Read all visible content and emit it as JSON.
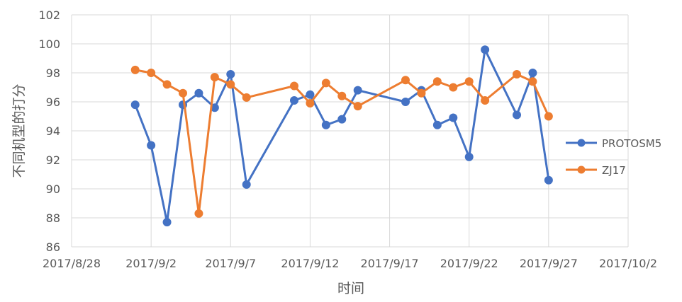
{
  "chart_data": {
    "type": "line",
    "title": "",
    "xlabel": "时间",
    "ylabel": "不同机型的打分",
    "ylim": [
      86,
      102
    ],
    "yticks": [
      86,
      88,
      90,
      92,
      94,
      96,
      98,
      100,
      102
    ],
    "xlim": [
      "2017/8/28",
      "2017/10/2"
    ],
    "xticks": [
      "2017/8/28",
      "2017/9/2",
      "2017/9/7",
      "2017/9/12",
      "2017/9/17",
      "2017/9/22",
      "2017/9/27",
      "2017/10/2"
    ],
    "grid": "vertical and horizontal",
    "legend_position": "right",
    "series": [
      {
        "name": "PROTOSM5",
        "color": "#4472C4",
        "x": [
          "2017/9/1",
          "2017/9/2",
          "2017/9/3",
          "2017/9/4",
          "2017/9/5",
          "2017/9/6",
          "2017/9/7",
          "2017/9/8",
          "2017/9/11",
          "2017/9/12",
          "2017/9/13",
          "2017/9/14",
          "2017/9/15",
          "2017/9/18",
          "2017/9/19",
          "2017/9/20",
          "2017/9/21",
          "2017/9/22",
          "2017/9/23",
          "2017/9/25",
          "2017/9/26",
          "2017/9/27"
        ],
        "y": [
          95.8,
          93.0,
          87.7,
          95.8,
          96.6,
          95.6,
          97.9,
          90.3,
          96.1,
          96.5,
          94.4,
          94.8,
          96.8,
          96.0,
          96.8,
          94.4,
          94.9,
          92.2,
          99.6,
          95.1,
          98.0,
          90.6
        ]
      },
      {
        "name": "ZJ17",
        "color": "#ED7D31",
        "x": [
          "2017/9/1",
          "2017/9/2",
          "2017/9/3",
          "2017/9/4",
          "2017/9/5",
          "2017/9/6",
          "2017/9/7",
          "2017/9/8",
          "2017/9/11",
          "2017/9/12",
          "2017/9/13",
          "2017/9/14",
          "2017/9/15",
          "2017/9/18",
          "2017/9/19",
          "2017/9/20",
          "2017/9/21",
          "2017/9/22",
          "2017/9/23",
          "2017/9/25",
          "2017/9/26",
          "2017/9/27"
        ],
        "y": [
          98.2,
          98.0,
          97.2,
          96.6,
          88.3,
          97.7,
          97.2,
          96.3,
          97.1,
          95.9,
          97.3,
          96.4,
          95.7,
          97.5,
          96.6,
          97.4,
          97.0,
          97.4,
          96.1,
          97.9,
          97.4,
          95.0
        ]
      }
    ]
  }
}
